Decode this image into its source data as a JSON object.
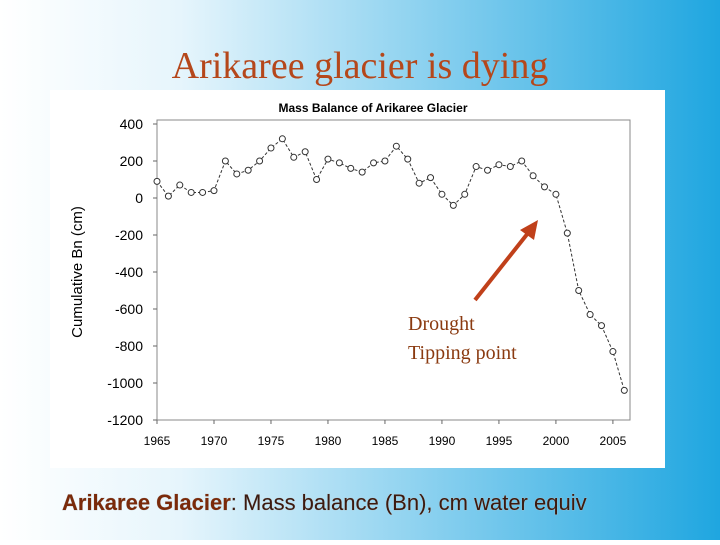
{
  "slide": {
    "title": "Arikaree glacier is dying",
    "caption_bold": "Arikaree Glacier",
    "caption_rest": ": Mass balance (Bn), cm water equiv"
  },
  "chart_data": {
    "type": "line",
    "title": "Mass Balance of Arikaree Glacier",
    "y_label": "Cumulative Bn (cm)",
    "x": [
      1965,
      1966,
      1967,
      1968,
      1969,
      1970,
      1971,
      1972,
      1973,
      1974,
      1975,
      1976,
      1977,
      1978,
      1979,
      1980,
      1981,
      1982,
      1983,
      1984,
      1985,
      1986,
      1987,
      1988,
      1989,
      1990,
      1991,
      1992,
      1993,
      1994,
      1995,
      1996,
      1997,
      1998,
      1999,
      2000,
      2001,
      2002,
      2003,
      2004,
      2005,
      2006
    ],
    "values": [
      90,
      10,
      70,
      30,
      30,
      40,
      200,
      130,
      150,
      200,
      270,
      320,
      220,
      250,
      100,
      210,
      190,
      160,
      140,
      190,
      200,
      280,
      210,
      80,
      110,
      20,
      -40,
      20,
      170,
      150,
      180,
      170,
      200,
      120,
      60,
      20,
      -190,
      -500,
      -630,
      -690,
      -830,
      -1040
    ],
    "color": "#333333",
    "xlim": [
      1965,
      2006.5
    ],
    "xticks": [
      1965,
      1970,
      1975,
      1980,
      1985,
      1990,
      1995,
      2000,
      2005
    ],
    "ylim": [
      -1200,
      400
    ],
    "yticks": [
      400,
      200,
      0,
      -200,
      -400,
      -600,
      -800,
      -1000,
      -1200
    ],
    "annotation": [
      "Drought",
      "Tipping point"
    ]
  }
}
